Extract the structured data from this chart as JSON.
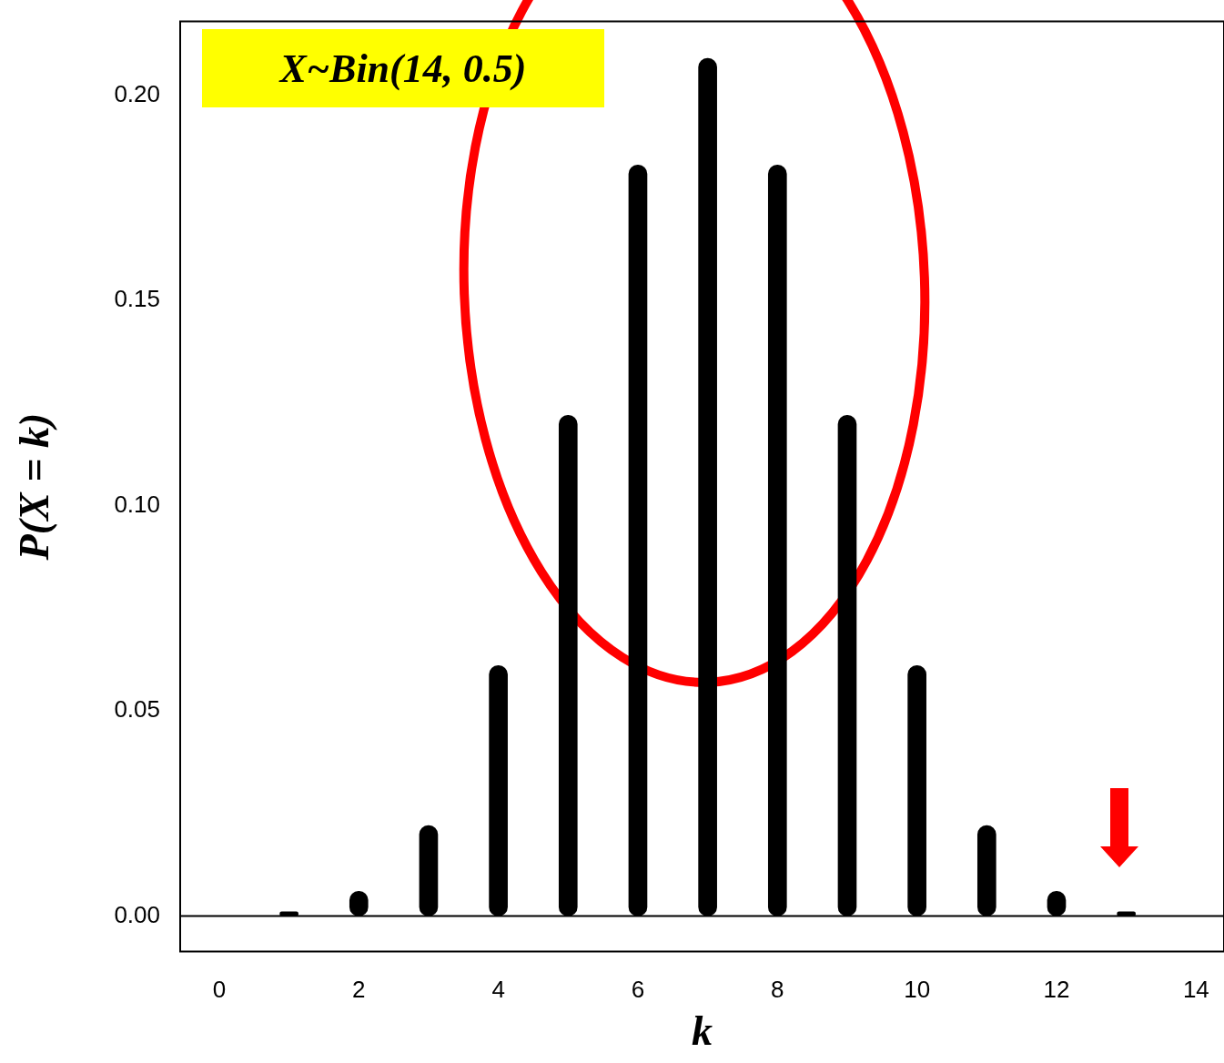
{
  "chart_data": {
    "type": "bar",
    "x": [
      0,
      1,
      2,
      3,
      4,
      5,
      6,
      7,
      8,
      9,
      10,
      11,
      12,
      13,
      14
    ],
    "values": [
      0.0,
      0.001,
      0.006,
      0.022,
      0.061,
      0.122,
      0.183,
      0.209,
      0.183,
      0.122,
      0.061,
      0.022,
      0.006,
      0.001,
      0.0
    ],
    "color": "#000000",
    "xlabel": "k",
    "ylabel": "P(X = k)",
    "xlim": [
      -0.56,
      14.4
    ],
    "xticks": [
      0,
      2,
      4,
      6,
      8,
      10,
      12,
      14
    ],
    "ylim": [
      -0.0087,
      0.218
    ],
    "yticks": [
      {
        "value": 0,
        "label": "0.00"
      },
      {
        "value": 0.05,
        "label": "0.05"
      },
      {
        "value": 0.1,
        "label": "0.10"
      },
      {
        "value": 0.15,
        "label": "0.15"
      },
      {
        "value": 0.2,
        "label": "0.20"
      }
    ],
    "ref_lines": [
      {
        "axis": "y",
        "value": 0,
        "color": "#000000"
      }
    ],
    "annotations": [
      "X~Bin(14, 0.5)"
    ],
    "grid": false,
    "legend": false
  }
}
